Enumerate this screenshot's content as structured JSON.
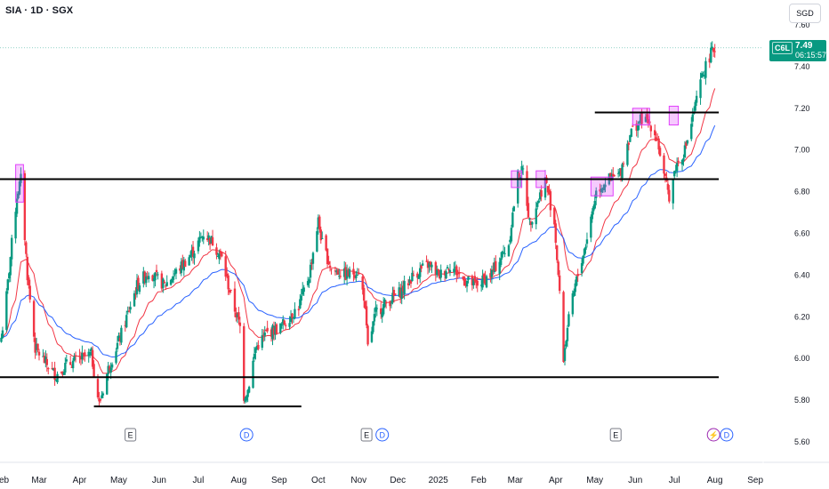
{
  "header": {
    "symbol_title": "SIA · 1D · SGX",
    "currency_label": "SGD"
  },
  "price_tag": {
    "symbol": "C6L",
    "price": "7.49",
    "countdown": "06:15:57",
    "color": "#089981"
  },
  "colors": {
    "up": "#089981",
    "down": "#f23645",
    "ema_fast": "#f23645",
    "ema_slow": "#2962ff",
    "highlight_box": "#e040fb",
    "trendline": "#000000",
    "axis_text": "#131722"
  },
  "chart_data": {
    "type": "candlestick",
    "title": "SIA · 1D · SGX",
    "y_axis": {
      "unit": "SGD",
      "ylim": [
        5.6,
        7.85
      ],
      "ticks": [
        5.6,
        5.8,
        6.0,
        6.2,
        6.4,
        6.6,
        6.8,
        7.0,
        7.2,
        7.4,
        7.6
      ],
      "tick_labels": [
        "5.60",
        "5.80",
        "6.00",
        "6.20",
        "6.40",
        "6.60",
        "6.80",
        "7.00",
        "7.20",
        "7.40",
        "7.60"
      ]
    },
    "x_axis": {
      "months": [
        "Feb",
        "Mar",
        "Apr",
        "May",
        "Jun",
        "Jul",
        "Aug",
        "Sep",
        "Oct",
        "Nov",
        "Dec",
        "2025",
        "Feb",
        "Mar",
        "Apr",
        "May",
        "Jun",
        "Jul",
        "Aug",
        "Sep"
      ],
      "range": [
        "2024-01-31",
        "2025-09-05"
      ]
    },
    "anchors": [
      [
        "2024-02-01",
        6.1
      ],
      [
        "2024-02-05",
        6.3
      ],
      [
        "2024-02-09",
        6.55
      ],
      [
        "2024-02-13",
        6.78
      ],
      [
        "2024-02-16",
        6.86
      ],
      [
        "2024-02-21",
        6.4
      ],
      [
        "2024-02-27",
        6.05
      ],
      [
        "2024-03-07",
        5.97
      ],
      [
        "2024-03-14",
        5.92
      ],
      [
        "2024-03-22",
        5.97
      ],
      [
        "2024-04-02",
        6.0
      ],
      [
        "2024-04-10",
        6.02
      ],
      [
        "2024-04-16",
        5.78
      ],
      [
        "2024-04-23",
        5.95
      ],
      [
        "2024-05-02",
        6.1
      ],
      [
        "2024-05-15",
        6.35
      ],
      [
        "2024-05-24",
        6.42
      ],
      [
        "2024-06-05",
        6.35
      ],
      [
        "2024-06-19",
        6.45
      ],
      [
        "2024-06-28",
        6.52
      ],
      [
        "2024-07-05",
        6.6
      ],
      [
        "2024-07-12",
        6.56
      ],
      [
        "2024-07-19",
        6.48
      ],
      [
        "2024-07-26",
        6.3
      ],
      [
        "2024-08-02",
        6.15
      ],
      [
        "2024-08-05",
        5.82
      ],
      [
        "2024-08-08",
        5.85
      ],
      [
        "2024-08-14",
        6.05
      ],
      [
        "2024-08-22",
        6.12
      ],
      [
        "2024-09-02",
        6.15
      ],
      [
        "2024-09-16",
        6.25
      ],
      [
        "2024-09-24",
        6.4
      ],
      [
        "2024-10-01",
        6.66
      ],
      [
        "2024-10-04",
        6.55
      ],
      [
        "2024-10-11",
        6.43
      ],
      [
        "2024-10-22",
        6.4
      ],
      [
        "2024-10-31",
        6.42
      ],
      [
        "2024-11-05",
        6.3
      ],
      [
        "2024-11-08",
        6.05
      ],
      [
        "2024-11-14",
        6.22
      ],
      [
        "2024-11-25",
        6.28
      ],
      [
        "2024-12-03",
        6.32
      ],
      [
        "2024-12-13",
        6.4
      ],
      [
        "2024-12-24",
        6.45
      ],
      [
        "2025-01-02",
        6.4
      ],
      [
        "2025-01-10",
        6.45
      ],
      [
        "2025-01-20",
        6.38
      ],
      [
        "2025-01-30",
        6.35
      ],
      [
        "2025-02-10",
        6.4
      ],
      [
        "2025-02-24",
        6.55
      ],
      [
        "2025-03-03",
        6.88
      ],
      [
        "2025-03-07",
        6.9
      ],
      [
        "2025-03-12",
        6.65
      ],
      [
        "2025-03-18",
        6.75
      ],
      [
        "2025-03-24",
        6.86
      ],
      [
        "2025-03-31",
        6.65
      ],
      [
        "2025-04-03",
        6.4
      ],
      [
        "2025-04-07",
        6.0
      ],
      [
        "2025-04-10",
        6.15
      ],
      [
        "2025-04-16",
        6.35
      ],
      [
        "2025-04-24",
        6.55
      ],
      [
        "2025-05-02",
        6.8
      ],
      [
        "2025-05-09",
        6.85
      ],
      [
        "2025-05-20",
        6.88
      ],
      [
        "2025-05-28",
        7.08
      ],
      [
        "2025-06-06",
        7.15
      ],
      [
        "2025-06-13",
        7.12
      ],
      [
        "2025-06-18",
        7.05
      ],
      [
        "2025-06-23",
        6.87
      ],
      [
        "2025-06-27",
        6.78
      ],
      [
        "2025-07-02",
        6.92
      ],
      [
        "2025-07-09",
        7.0
      ],
      [
        "2025-07-16",
        7.18
      ],
      [
        "2025-07-22",
        7.35
      ],
      [
        "2025-07-28",
        7.45
      ],
      [
        "2025-08-01",
        7.49
      ]
    ],
    "series": [
      {
        "name": "",
        "kind": "ema",
        "period": 20,
        "color": "#f23645"
      },
      {
        "name": "",
        "kind": "ema",
        "period": 50,
        "color": "#2962ff"
      }
    ],
    "horizontal_levels": [
      {
        "from": "2024-01-31",
        "to": "2025-08-04",
        "value": 6.86
      },
      {
        "from": "2024-01-31",
        "to": "2025-08-04",
        "value": 5.91
      },
      {
        "from": "2024-04-12",
        "to": "2024-09-18",
        "value": 5.77
      },
      {
        "from": "2025-05-01",
        "to": "2025-08-04",
        "value": 7.18
      }
    ],
    "highlight_boxes": [
      {
        "from": "2024-02-12",
        "to": "2024-02-18",
        "low": 6.75,
        "high": 6.93
      },
      {
        "from": "2025-02-26",
        "to": "2025-03-06",
        "low": 6.82,
        "high": 6.9
      },
      {
        "from": "2025-03-17",
        "to": "2025-03-24",
        "low": 6.82,
        "high": 6.9
      },
      {
        "from": "2025-04-28",
        "to": "2025-05-15",
        "low": 6.78,
        "high": 6.87
      },
      {
        "from": "2025-05-30",
        "to": "2025-06-12",
        "low": 7.12,
        "high": 7.2
      },
      {
        "from": "2025-06-27",
        "to": "2025-07-04",
        "low": 7.12,
        "high": 7.21
      }
    ],
    "events": [
      {
        "date": "2024-05-10",
        "label": "E",
        "kind": "earnings"
      },
      {
        "date": "2024-08-07",
        "label": "D",
        "kind": "dividend"
      },
      {
        "date": "2024-11-07",
        "label": "E",
        "kind": "earnings"
      },
      {
        "date": "2024-11-19",
        "label": "D",
        "kind": "dividend"
      },
      {
        "date": "2025-05-17",
        "label": "E",
        "kind": "earnings"
      },
      {
        "date": "2025-07-31",
        "label": "⚡",
        "kind": "split"
      },
      {
        "date": "2025-08-10",
        "label": "D",
        "kind": "dividend"
      }
    ]
  }
}
